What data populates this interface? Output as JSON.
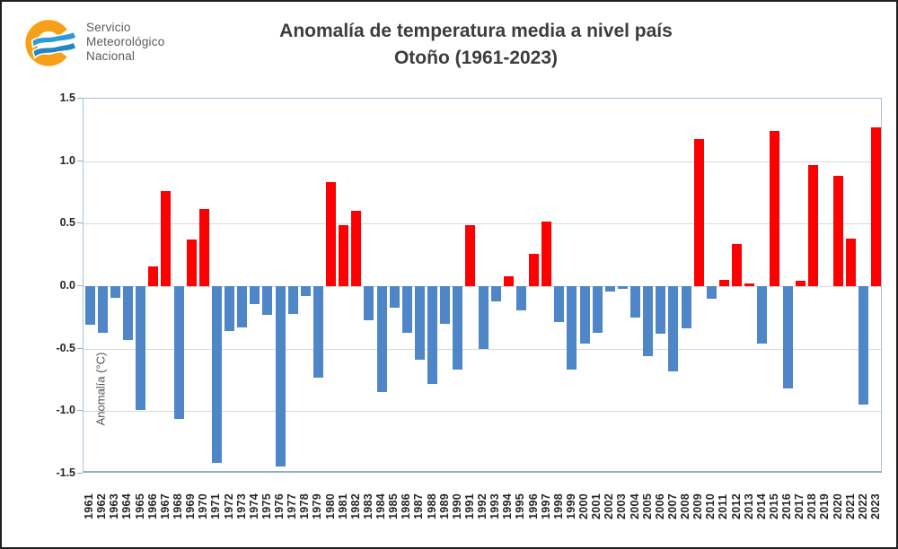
{
  "logo": {
    "line1": "Servicio",
    "line2": "Meteorológico",
    "line3": "Nacional",
    "icon": "smn-sun-wave-logo",
    "colors": {
      "ring": "#F6A01A",
      "wave_top": "#2D9BD5",
      "wave_bottom": "#2385C6",
      "text": "#5a5b5e"
    }
  },
  "chart_data": {
    "type": "bar",
    "title": "Anomalía de temperatura media a nivel país",
    "subtitle": "Otoño (1961-2023)",
    "ylabel": "Anomalía (°C)",
    "xlabel": "",
    "ylim": [
      -1.5,
      1.5
    ],
    "ytick_step": 0.5,
    "ytick_labels": [
      "1.5",
      "1.0",
      "0.5",
      "0.0",
      "-0.5",
      "-1.0",
      "-1.5"
    ],
    "grid": true,
    "legend": "none",
    "categories": [
      1961,
      1962,
      1963,
      1964,
      1965,
      1966,
      1967,
      1968,
      1969,
      1970,
      1971,
      1972,
      1973,
      1974,
      1975,
      1976,
      1977,
      1978,
      1979,
      1980,
      1981,
      1982,
      1983,
      1984,
      1985,
      1986,
      1987,
      1988,
      1989,
      1990,
      1991,
      1992,
      1993,
      1994,
      1995,
      1996,
      1997,
      1998,
      1999,
      2000,
      2001,
      2002,
      2003,
      2004,
      2005,
      2006,
      2007,
      2008,
      2009,
      2010,
      2011,
      2012,
      2013,
      2014,
      2015,
      2016,
      2017,
      2018,
      2019,
      2020,
      2021,
      2022,
      2023
    ],
    "values": [
      -0.31,
      -0.37,
      -0.09,
      -0.43,
      -0.99,
      0.16,
      0.76,
      -1.06,
      0.37,
      0.62,
      -1.41,
      -0.36,
      -0.33,
      -0.14,
      -0.23,
      -1.44,
      -0.22,
      -0.08,
      -0.73,
      0.83,
      0.49,
      0.6,
      -0.27,
      -0.85,
      -0.17,
      -0.37,
      -0.59,
      -0.78,
      -0.3,
      -0.67,
      0.49,
      -0.5,
      -0.12,
      0.08,
      -0.19,
      0.26,
      0.52,
      -0.29,
      -0.67,
      -0.46,
      -0.37,
      -0.04,
      -0.02,
      -0.25,
      -0.56,
      -0.38,
      -0.68,
      -0.34,
      1.18,
      -0.1,
      0.05,
      0.34,
      0.02,
      -0.46,
      1.24,
      -0.82,
      0.04,
      0.97,
      0.0,
      0.88,
      0.38,
      -0.95,
      1.27
    ],
    "positive_color": "#fe0000",
    "negative_color": "#4e86c8",
    "gridline_color": "#d9d9d9",
    "axis_color": "#8eafc6"
  }
}
